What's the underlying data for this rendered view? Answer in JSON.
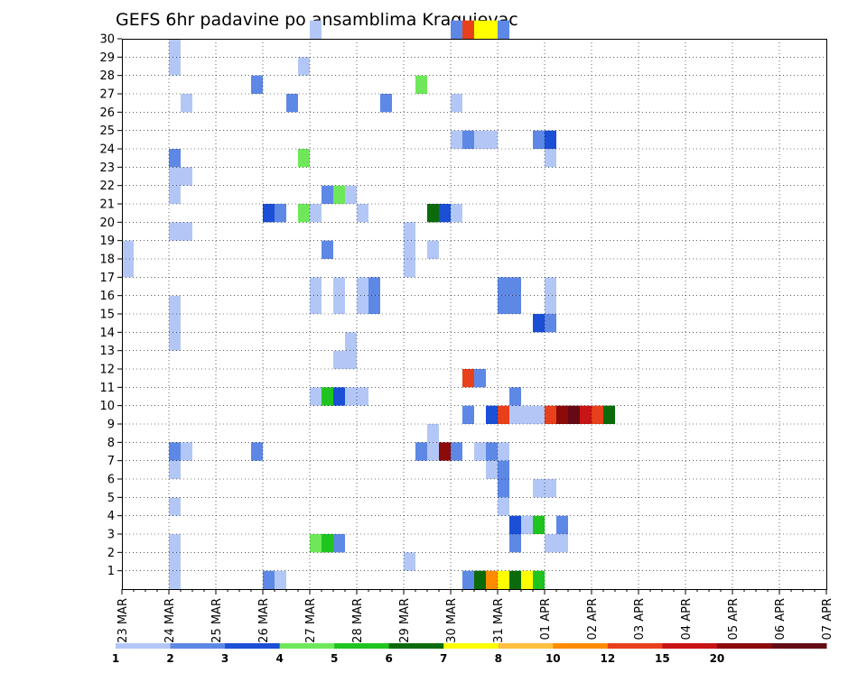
{
  "chart_data": {
    "type": "heatmap",
    "title": "GEFS 6hr padavine po ansamblima Kragujevac",
    "xlabel": "",
    "ylabel": "",
    "x_tick_labels": [
      "23 MAR",
      "24 MAR",
      "25 MAR",
      "26 MAR",
      "27 MAR",
      "28 MAR",
      "29 MAR",
      "30 MAR",
      "31 MAR",
      "01 APR",
      "02 APR",
      "03 APR",
      "04 APR",
      "05 APR",
      "06 APR",
      "07 APR"
    ],
    "y_tick_labels": [
      "1",
      "2",
      "3",
      "4",
      "5",
      "6",
      "7",
      "8",
      "9",
      "10",
      "11",
      "12",
      "13",
      "14",
      "15",
      "16",
      "17",
      "18",
      "19",
      "20",
      "21",
      "22",
      "23",
      "24",
      "25",
      "26",
      "27",
      "28",
      "29",
      "30"
    ],
    "grid": true,
    "colorbar": {
      "position": "bottom",
      "labels": [
        "1",
        "2",
        "3",
        "4",
        "5",
        "6",
        "7",
        "8",
        "10",
        "12",
        "15",
        "20"
      ],
      "colors": [
        "#b3c7f7",
        "#5e88e6",
        "#1a4fd6",
        "#6ee85a",
        "#1fc41f",
        "#0b6b0b",
        "#ffff00",
        "#ffc040",
        "#ff8c00",
        "#e8401a",
        "#c81414",
        "#8c0a0a",
        "#640a14"
      ]
    },
    "cells": [
      {
        "step": 16,
        "member": 30,
        "level": 1
      },
      {
        "step": 28,
        "member": 30,
        "level": 2
      },
      {
        "step": 29,
        "member": 30,
        "level": 10
      },
      {
        "step": 30,
        "member": 30,
        "level": 7
      },
      {
        "step": 31,
        "member": 30,
        "level": 7
      },
      {
        "step": 32,
        "member": 30,
        "level": 2
      },
      {
        "step": 4,
        "member": 29,
        "level": 1
      },
      {
        "step": 4,
        "member": 28,
        "level": 1
      },
      {
        "step": 15,
        "member": 28,
        "level": 1
      },
      {
        "step": 11,
        "member": 27,
        "level": 2
      },
      {
        "step": 25,
        "member": 27,
        "level": 4
      },
      {
        "step": 5,
        "member": 26,
        "level": 1
      },
      {
        "step": 14,
        "member": 26,
        "level": 2
      },
      {
        "step": 22,
        "member": 26,
        "level": 2
      },
      {
        "step": 28,
        "member": 26,
        "level": 1
      },
      {
        "step": 28,
        "member": 24,
        "level": 1
      },
      {
        "step": 29,
        "member": 24,
        "level": 2
      },
      {
        "step": 30,
        "member": 24,
        "level": 1
      },
      {
        "step": 31,
        "member": 24,
        "level": 1
      },
      {
        "step": 35,
        "member": 24,
        "level": 2
      },
      {
        "step": 36,
        "member": 24,
        "level": 3
      },
      {
        "step": 4,
        "member": 23,
        "level": 2
      },
      {
        "step": 15,
        "member": 23,
        "level": 4
      },
      {
        "step": 36,
        "member": 23,
        "level": 1
      },
      {
        "step": 4,
        "member": 22,
        "level": 1
      },
      {
        "step": 5,
        "member": 22,
        "level": 1
      },
      {
        "step": 4,
        "member": 21,
        "level": 1
      },
      {
        "step": 17,
        "member": 21,
        "level": 2
      },
      {
        "step": 18,
        "member": 21,
        "level": 4
      },
      {
        "step": 19,
        "member": 21,
        "level": 1
      },
      {
        "step": 12,
        "member": 20,
        "level": 3
      },
      {
        "step": 13,
        "member": 20,
        "level": 2
      },
      {
        "step": 15,
        "member": 20,
        "level": 4
      },
      {
        "step": 16,
        "member": 20,
        "level": 1
      },
      {
        "step": 20,
        "member": 20,
        "level": 1
      },
      {
        "step": 26,
        "member": 20,
        "level": 6
      },
      {
        "step": 27,
        "member": 20,
        "level": 3
      },
      {
        "step": 28,
        "member": 20,
        "level": 1
      },
      {
        "step": 4,
        "member": 19,
        "level": 1
      },
      {
        "step": 5,
        "member": 19,
        "level": 1
      },
      {
        "step": 24,
        "member": 19,
        "level": 1
      },
      {
        "step": 0,
        "member": 18,
        "level": 1
      },
      {
        "step": 17,
        "member": 18,
        "level": 2
      },
      {
        "step": 24,
        "member": 18,
        "level": 1
      },
      {
        "step": 26,
        "member": 18,
        "level": 1
      },
      {
        "step": 0,
        "member": 17,
        "level": 1
      },
      {
        "step": 24,
        "member": 17,
        "level": 1
      },
      {
        "step": 16,
        "member": 16,
        "level": 1
      },
      {
        "step": 18,
        "member": 16,
        "level": 1
      },
      {
        "step": 20,
        "member": 16,
        "level": 1
      },
      {
        "step": 21,
        "member": 16,
        "level": 2
      },
      {
        "step": 32,
        "member": 16,
        "level": 2
      },
      {
        "step": 33,
        "member": 16,
        "level": 2
      },
      {
        "step": 36,
        "member": 16,
        "level": 1
      },
      {
        "step": 16,
        "member": 15,
        "level": 1
      },
      {
        "step": 18,
        "member": 15,
        "level": 1
      },
      {
        "step": 20,
        "member": 15,
        "level": 1
      },
      {
        "step": 21,
        "member": 15,
        "level": 2
      },
      {
        "step": 32,
        "member": 15,
        "level": 2
      },
      {
        "step": 33,
        "member": 15,
        "level": 2
      },
      {
        "step": 36,
        "member": 15,
        "level": 1
      },
      {
        "step": 4,
        "member": 15,
        "level": 1
      },
      {
        "step": 4,
        "member": 14,
        "level": 1
      },
      {
        "step": 4,
        "member": 13,
        "level": 1
      },
      {
        "step": 35,
        "member": 14,
        "level": 3
      },
      {
        "step": 36,
        "member": 14,
        "level": 2
      },
      {
        "step": 19,
        "member": 13,
        "level": 1
      },
      {
        "step": 19,
        "member": 12,
        "level": 1
      },
      {
        "step": 18,
        "member": 12,
        "level": 1
      },
      {
        "step": 29,
        "member": 11,
        "level": 10
      },
      {
        "step": 30,
        "member": 11,
        "level": 2
      },
      {
        "step": 16,
        "member": 10,
        "level": 1
      },
      {
        "step": 17,
        "member": 10,
        "level": 5
      },
      {
        "step": 18,
        "member": 10,
        "level": 3
      },
      {
        "step": 19,
        "member": 10,
        "level": 1
      },
      {
        "step": 20,
        "member": 10,
        "level": 1
      },
      {
        "step": 33,
        "member": 10,
        "level": 2
      },
      {
        "step": 29,
        "member": 9,
        "level": 2
      },
      {
        "step": 31,
        "member": 9,
        "level": 3
      },
      {
        "step": 32,
        "member": 9,
        "level": 10
      },
      {
        "step": 33,
        "member": 9,
        "level": 1
      },
      {
        "step": 34,
        "member": 9,
        "level": 1
      },
      {
        "step": 35,
        "member": 9,
        "level": 1
      },
      {
        "step": 36,
        "member": 9,
        "level": 10
      },
      {
        "step": 37,
        "member": 9,
        "level": 12
      },
      {
        "step": 38,
        "member": 9,
        "level": 15
      },
      {
        "step": 39,
        "member": 9,
        "level": 11
      },
      {
        "step": 40,
        "member": 9,
        "level": 10
      },
      {
        "step": 41,
        "member": 9,
        "level": 6
      },
      {
        "step": 26,
        "member": 8,
        "level": 1
      },
      {
        "step": 4,
        "member": 7,
        "level": 2
      },
      {
        "step": 5,
        "member": 7,
        "level": 1
      },
      {
        "step": 11,
        "member": 7,
        "level": 2
      },
      {
        "step": 25,
        "member": 7,
        "level": 2
      },
      {
        "step": 26,
        "member": 7,
        "level": 1
      },
      {
        "step": 27,
        "member": 7,
        "level": 12
      },
      {
        "step": 28,
        "member": 7,
        "level": 2
      },
      {
        "step": 30,
        "member": 7,
        "level": 1
      },
      {
        "step": 31,
        "member": 7,
        "level": 2
      },
      {
        "step": 32,
        "member": 7,
        "level": 1
      },
      {
        "step": 4,
        "member": 6,
        "level": 1
      },
      {
        "step": 31,
        "member": 6,
        "level": 1
      },
      {
        "step": 32,
        "member": 6,
        "level": 2
      },
      {
        "step": 32,
        "member": 5,
        "level": 2
      },
      {
        "step": 35,
        "member": 5,
        "level": 1
      },
      {
        "step": 36,
        "member": 5,
        "level": 1
      },
      {
        "step": 4,
        "member": 4,
        "level": 1
      },
      {
        "step": 32,
        "member": 4,
        "level": 1
      },
      {
        "step": 33,
        "member": 3,
        "level": 3
      },
      {
        "step": 34,
        "member": 3,
        "level": 1
      },
      {
        "step": 35,
        "member": 3,
        "level": 5
      },
      {
        "step": 37,
        "member": 3,
        "level": 2
      },
      {
        "step": 4,
        "member": 2,
        "level": 1
      },
      {
        "step": 16,
        "member": 2,
        "level": 4
      },
      {
        "step": 17,
        "member": 2,
        "level": 5
      },
      {
        "step": 18,
        "member": 2,
        "level": 2
      },
      {
        "step": 33,
        "member": 2,
        "level": 2
      },
      {
        "step": 36,
        "member": 2,
        "level": 1
      },
      {
        "step": 37,
        "member": 2,
        "level": 1
      },
      {
        "step": 4,
        "member": 1,
        "level": 1
      },
      {
        "step": 24,
        "member": 1,
        "level": 1
      },
      {
        "step": 4,
        "member": 0,
        "level": 1
      },
      {
        "step": 12,
        "member": 0,
        "level": 2
      },
      {
        "step": 13,
        "member": 0,
        "level": 1
      },
      {
        "step": 29,
        "member": 0,
        "level": 2
      },
      {
        "step": 30,
        "member": 0,
        "level": 6
      },
      {
        "step": 31,
        "member": 0,
        "level": 9
      },
      {
        "step": 32,
        "member": 0,
        "level": 7
      },
      {
        "step": 33,
        "member": 0,
        "level": 6
      },
      {
        "step": 34,
        "member": 0,
        "level": 7
      },
      {
        "step": 35,
        "member": 0,
        "level": 5
      }
    ]
  }
}
